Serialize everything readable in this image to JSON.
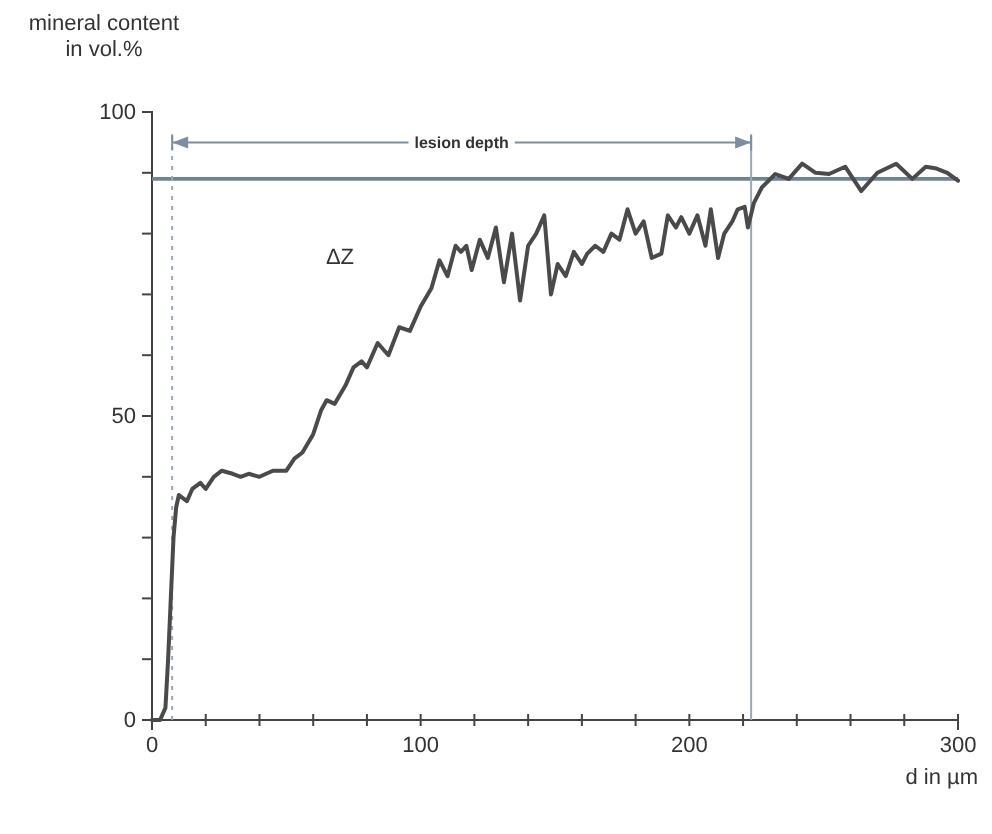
{
  "chart_data": {
    "type": "line",
    "ylabel": "mineral content\nin vol.%",
    "xlabel": "d in µm",
    "xlim": [
      0,
      300
    ],
    "ylim": [
      0,
      100
    ],
    "xticks": [
      0,
      {
        "value": 20,
        "label": null
      },
      {
        "value": 40,
        "label": null
      },
      {
        "value": 60,
        "label": null
      },
      {
        "value": 80,
        "label": null
      },
      100,
      {
        "value": 120,
        "label": null
      },
      {
        "value": 140,
        "label": null
      },
      {
        "value": 160,
        "label": null
      },
      {
        "value": 180,
        "label": null
      },
      200,
      {
        "value": 220,
        "label": null
      },
      {
        "value": 240,
        "label": null
      },
      {
        "value": 260,
        "label": null
      },
      {
        "value": 280,
        "label": null
      },
      300
    ],
    "yticks": [
      0,
      {
        "value": 10,
        "label": null
      },
      {
        "value": 20,
        "label": null
      },
      {
        "value": 30,
        "label": null
      },
      {
        "value": 40,
        "label": null
      },
      50,
      {
        "value": 60,
        "label": null
      },
      {
        "value": 70,
        "label": null
      },
      {
        "value": 80,
        "label": null
      },
      {
        "value": 90,
        "label": null
      },
      100
    ],
    "grid": false,
    "marker": "none",
    "line_style": "solid",
    "series": [
      {
        "color": "#4a4a4a",
        "x": [
          0,
          3,
          5,
          6,
          7,
          8,
          9,
          10,
          13,
          15,
          18,
          20,
          23,
          26,
          30,
          33,
          36,
          40,
          45,
          50,
          53,
          56,
          60,
          63,
          65,
          68,
          72,
          75,
          78,
          80,
          84,
          88,
          92,
          96,
          100,
          104,
          107,
          110,
          113,
          115,
          117,
          119,
          122,
          125,
          128,
          131,
          134,
          137,
          140,
          143,
          146,
          148.5,
          151,
          154,
          157,
          160,
          162,
          165,
          168,
          171,
          174,
          177,
          180,
          183,
          186,
          189.6,
          192,
          195,
          197,
          200,
          203,
          206,
          208,
          210.7,
          213,
          216,
          218,
          220.6,
          221.8,
          224,
          227,
          232,
          237,
          242,
          247,
          252,
          258,
          264,
          270,
          277,
          283,
          288,
          292,
          296,
          300
        ],
        "values": [
          0,
          0,
          2,
          10,
          20,
          30,
          35,
          37,
          36,
          38,
          39,
          38,
          40,
          41,
          40.5,
          40,
          40.5,
          40,
          41,
          41,
          43,
          44,
          47,
          51,
          52.6,
          52,
          55,
          58,
          59,
          58,
          62,
          60,
          64.6,
          64,
          68,
          71,
          75.6,
          73,
          78,
          77,
          78,
          74,
          79,
          76,
          81,
          72,
          80,
          69,
          78,
          80,
          83,
          70,
          75,
          73,
          77,
          75,
          76.7,
          78,
          77,
          80,
          79,
          84,
          80,
          82,
          76,
          76.7,
          83,
          81,
          82.7,
          80,
          83,
          78,
          84,
          76,
          80,
          82,
          84,
          84.4,
          81,
          85,
          87.6,
          89.8,
          89,
          91.5,
          90,
          89.8,
          91,
          87,
          90,
          91.5,
          89,
          91,
          90.7,
          90,
          88.7
        ]
      }
    ],
    "ref_lines": [
      {
        "axis": "y",
        "value": 89,
        "color": "#6f8396",
        "line_style": "solid"
      },
      {
        "axis": "x",
        "value": 7.5,
        "color": "#9aa9b6",
        "line_style": "dotted"
      },
      {
        "axis": "x",
        "value": 223,
        "color": "#9aa9b6",
        "line_style": "solid"
      }
    ],
    "annotations": [
      {
        "text": "lesion depth",
        "x": 223,
        "y": 95
      },
      "ΔZ"
    ]
  }
}
